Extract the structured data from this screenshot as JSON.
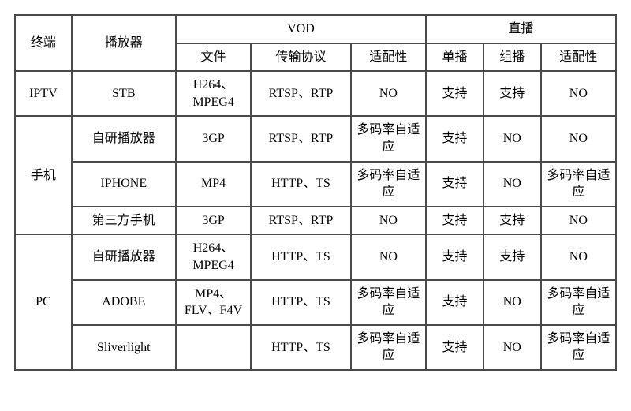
{
  "header": {
    "terminal": "终端",
    "player": "播放器",
    "vod": "VOD",
    "live": "直播",
    "file": "文件",
    "protocol": "传输协议",
    "v_adapt": "适配性",
    "unicast": "单播",
    "multicast": "组播",
    "l_adapt": "适配性"
  },
  "groups": [
    {
      "terminal": "IPTV",
      "rows": [
        {
          "player": "STB",
          "file": "H264、MPEG4",
          "protocol": "RTSP、RTP",
          "v_adapt": "NO",
          "unicast": "支持",
          "multicast": "支持",
          "l_adapt": "NO"
        }
      ]
    },
    {
      "terminal": "手机",
      "rows": [
        {
          "player": "自研播放器",
          "file": "3GP",
          "protocol": "RTSP、RTP",
          "v_adapt": "多码率自适应",
          "unicast": "支持",
          "multicast": "NO",
          "l_adapt": "NO"
        },
        {
          "player": "IPHONE",
          "file": "MP4",
          "protocol": "HTTP、TS",
          "v_adapt": "多码率自适应",
          "unicast": "支持",
          "multicast": "NO",
          "l_adapt": "多码率自适应"
        },
        {
          "player": "第三方手机",
          "file": "3GP",
          "protocol": "RTSP、RTP",
          "v_adapt": "NO",
          "unicast": "支持",
          "multicast": "支持",
          "l_adapt": "NO"
        }
      ]
    },
    {
      "terminal": "PC",
      "rows": [
        {
          "player": "自研播放器",
          "file": "H264、MPEG4",
          "protocol": "HTTP、TS",
          "v_adapt": "NO",
          "unicast": "支持",
          "multicast": "支持",
          "l_adapt": "NO"
        },
        {
          "player": "ADOBE",
          "file": "MP4、FLV、F4V",
          "protocol": "HTTP、TS",
          "v_adapt": "多码率自适应",
          "unicast": "支持",
          "multicast": "NO",
          "l_adapt": "多码率自适应"
        },
        {
          "player": "Sliverlight",
          "file": "",
          "protocol": "HTTP、TS",
          "v_adapt": "多码率自适应",
          "unicast": "支持",
          "multicast": "NO",
          "l_adapt": "多码率自适应"
        }
      ]
    }
  ]
}
